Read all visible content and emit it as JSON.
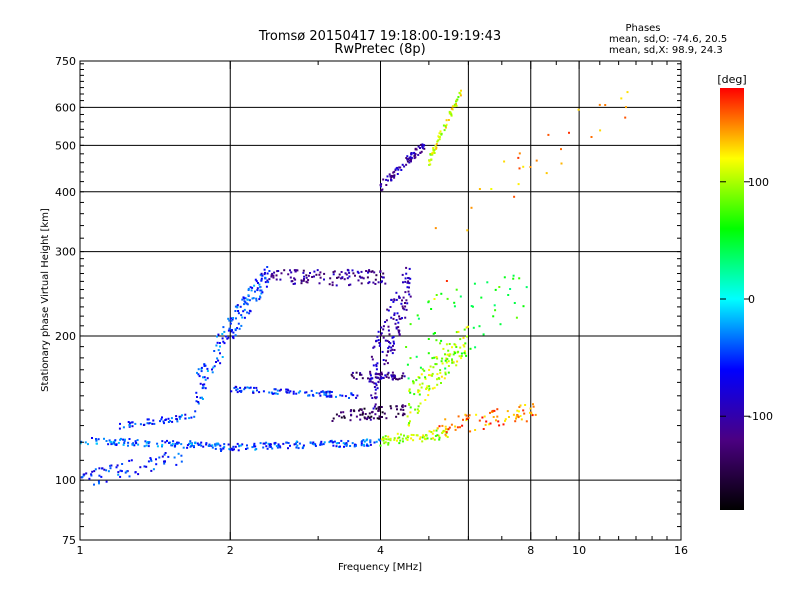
{
  "chart_data": {
    "type": "scatter",
    "title": "Tromsø 20150417 19:18:00-19:19:43",
    "subtitle": "RwPretec (8p)",
    "xlabel": "Frequency [MHz]",
    "ylabel": "Stationary phase Virtual Height [km]",
    "x_scale": "log",
    "y_scale": "log",
    "xlim": [
      1,
      16
    ],
    "ylim": [
      75,
      750
    ],
    "x_ticks": [
      1,
      2,
      4,
      8,
      10,
      16
    ],
    "y_ticks": [
      75,
      100,
      200,
      300,
      400,
      500,
      600,
      750
    ],
    "x_grid": [
      2,
      4,
      6,
      8,
      10
    ],
    "y_grid": [
      100,
      200,
      300,
      400,
      500,
      600
    ],
    "grid": true,
    "legend": {
      "title": "Phases",
      "line1": "mean, sd,O: -74.6, 20.5",
      "line2": "mean, sd,X:  98.9, 24.3",
      "placement": "top-right"
    },
    "colorbar": {
      "label": "[deg]",
      "range": [
        -180,
        180
      ],
      "ticks": [
        100,
        0,
        -100
      ],
      "colors": [
        "#000000",
        "#4b0082",
        "#0000ff",
        "#00ffff",
        "#00ff00",
        "#ffff00",
        "#ff0000"
      ]
    },
    "traces": [
      {
        "f0": 1.0,
        "f1": 1.9,
        "h0": 121,
        "h1": 118,
        "spread": 2,
        "phase": -40,
        "n": 120
      },
      {
        "f0": 1.9,
        "f1": 4.0,
        "h0": 117,
        "h1": 120,
        "spread": 2,
        "phase": -45,
        "n": 140
      },
      {
        "f0": 4.0,
        "f1": 5.5,
        "h0": 121,
        "h1": 125,
        "spread": 3,
        "phase": 100,
        "n": 70
      },
      {
        "f0": 5.2,
        "f1": 8.3,
        "h0": 128,
        "h1": 140,
        "spread": 6,
        "phase": 150,
        "n": 80
      },
      {
        "f0": 1.0,
        "f1": 1.6,
        "h0": 100,
        "h1": 112,
        "spread": 4,
        "phase": -55,
        "n": 70
      },
      {
        "f0": 1.2,
        "f1": 1.7,
        "h0": 130,
        "h1": 136,
        "spread": 2,
        "phase": -50,
        "n": 50
      },
      {
        "f0": 1.7,
        "f1": 2.4,
        "h0": 150,
        "h1": 270,
        "spread": 15,
        "phase": -45,
        "n": 160
      },
      {
        "f0": 2.0,
        "f1": 3.6,
        "h0": 155,
        "h1": 150,
        "spread": 2,
        "phase": -55,
        "n": 90
      },
      {
        "f0": 2.3,
        "f1": 4.1,
        "h0": 265,
        "h1": 265,
        "spread": 10,
        "phase": -110,
        "n": 120
      },
      {
        "f0": 3.2,
        "f1": 4.5,
        "h0": 135,
        "h1": 140,
        "spread": 4,
        "phase": -140,
        "n": 70
      },
      {
        "f0": 3.5,
        "f1": 4.5,
        "h0": 165,
        "h1": 165,
        "spread": 3,
        "phase": -120,
        "n": 50
      },
      {
        "f0": 3.8,
        "f1": 4.6,
        "h0": 150,
        "h1": 260,
        "spread": 30,
        "phase": -100,
        "n": 150
      },
      {
        "f0": 4.5,
        "f1": 6.0,
        "h0": 140,
        "h1": 200,
        "spread": 15,
        "phase": 100,
        "n": 120
      },
      {
        "f0": 4.0,
        "f1": 4.9,
        "h0": 410,
        "h1": 500,
        "spread": 10,
        "phase": -105,
        "n": 80
      },
      {
        "f0": 5.0,
        "f1": 5.8,
        "h0": 460,
        "h1": 640,
        "spread": 12,
        "phase": 110,
        "n": 60
      },
      {
        "f0": 4.5,
        "f1": 8.0,
        "h0": 190,
        "h1": 250,
        "spread": 40,
        "phase": 60,
        "n": 60
      },
      {
        "f0": 5.0,
        "f1": 13.0,
        "h0": 280,
        "h1": 650,
        "spread": 60,
        "phase": 140,
        "n": 30
      }
    ]
  }
}
